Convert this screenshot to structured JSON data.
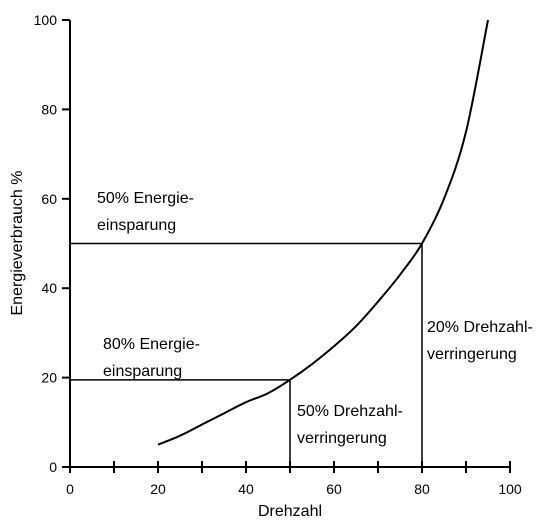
{
  "chart_data": {
    "type": "line",
    "title": "",
    "xlabel": "Drehzahl",
    "ylabel": "Energieverbrauch %",
    "xlim": [
      0,
      100
    ],
    "ylim": [
      0,
      100
    ],
    "x_ticks": [
      0,
      20,
      40,
      60,
      80,
      100
    ],
    "y_ticks": [
      0,
      20,
      40,
      60,
      80,
      100
    ],
    "x_tick_labels": [
      "0",
      "20",
      "40",
      "60",
      "80",
      "100"
    ],
    "y_tick_labels": [
      "0",
      "20",
      "40",
      "60",
      "80",
      "100"
    ],
    "grid": false,
    "series": [
      {
        "x": [
          20,
          25,
          30,
          35,
          40,
          45,
          50,
          55,
          60,
          65,
          70,
          75,
          80,
          85,
          90,
          95
        ],
        "y": [
          5,
          7,
          9.5,
          12,
          14.5,
          16.5,
          19.5,
          23,
          27,
          31.5,
          37,
          43,
          50,
          60,
          75,
          100
        ]
      }
    ],
    "reference_lines": [
      {
        "from": [
          0,
          50
        ],
        "to": [
          80,
          50
        ]
      },
      {
        "from": [
          80,
          0
        ],
        "to": [
          80,
          50
        ]
      },
      {
        "from": [
          0,
          19.5
        ],
        "to": [
          50,
          19.5
        ]
      },
      {
        "from": [
          50,
          0
        ],
        "to": [
          50,
          19.5
        ]
      }
    ],
    "annotations": [
      {
        "lines": [
          "50% Energie-",
          "einsparung"
        ]
      },
      {
        "lines": [
          "80% Energie-",
          "einsparung"
        ]
      },
      {
        "lines": [
          "20% Drehzahl-",
          "verringerung"
        ]
      },
      {
        "lines": [
          "50% Drehzahl-",
          "verringerung"
        ]
      }
    ]
  }
}
